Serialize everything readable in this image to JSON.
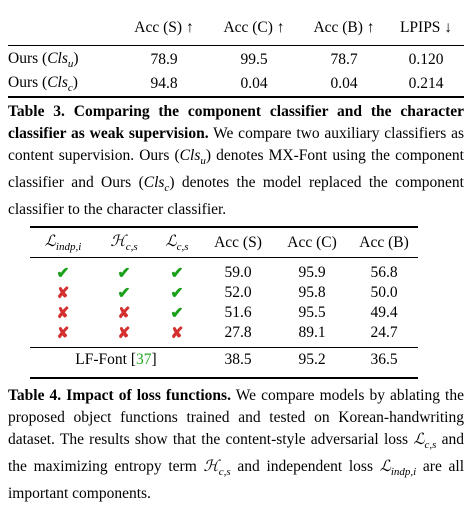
{
  "table3": {
    "headers": [
      "",
      "Acc (S) ↑",
      "Acc (C) ↑",
      "Acc (B) ↑",
      "LPIPS ↓"
    ],
    "rows": [
      {
        "method": "Ours (Cls_u)",
        "acc_s": "78.9",
        "acc_c": "99.5",
        "acc_b": "78.7",
        "lpips": "0.120"
      },
      {
        "method": "Ours (Cls_c)",
        "acc_s": "94.8",
        "acc_c": "0.04",
        "acc_b": "0.04",
        "lpips": "0.214"
      }
    ],
    "caption_label": "Table 3.",
    "caption_title": "Comparing the component classifier and the character classifier as weak supervision.",
    "caption_text_1": "We compare two auxiliary classifiers as content supervision. Ours",
    "caption_text_2": "denotes MX-Font using the component classifier and Ours",
    "caption_text_3": "denotes the model replaced the component classifier to the character classifier."
  },
  "table4": {
    "headers": [
      "L_indp,i",
      "H_c,s",
      "L_c,s",
      "Acc (S)",
      "Acc (C)",
      "Acc (B)"
    ],
    "rows": [
      {
        "indp": "check",
        "hcs": "check",
        "lcs": "check",
        "acc_s": "59.0",
        "acc_c": "95.9",
        "acc_b": "56.8",
        "bold": true
      },
      {
        "indp": "cross",
        "hcs": "check",
        "lcs": "check",
        "acc_s": "52.0",
        "acc_c": "95.8",
        "acc_b": "50.0",
        "bold": false
      },
      {
        "indp": "cross",
        "hcs": "cross",
        "lcs": "check",
        "acc_s": "51.6",
        "acc_c": "95.5",
        "acc_b": "49.4",
        "bold": false
      },
      {
        "indp": "cross",
        "hcs": "cross",
        "lcs": "cross",
        "acc_s": "27.8",
        "acc_c": "89.1",
        "acc_b": "24.7",
        "bold": false
      }
    ],
    "baseline": {
      "method": "LF-Font",
      "cite": "37",
      "acc_s": "38.5",
      "acc_c": "95.2",
      "acc_b": "36.5"
    },
    "caption_label": "Table 4.",
    "caption_title": "Impact of loss functions.",
    "caption_text_1": "We compare models by ablating the proposed object functions trained and tested on Korean-handwriting dataset. The results show that the content-style adversarial loss",
    "caption_text_2": "and the maximizing entropy term",
    "caption_text_3": "and independent loss",
    "caption_text_4": "are all important components."
  },
  "symbols": {
    "check": "✔",
    "cross": "✘"
  },
  "colors": {
    "check": "#1aa01a",
    "cross": "#d43030",
    "cite": "#22aa22"
  }
}
